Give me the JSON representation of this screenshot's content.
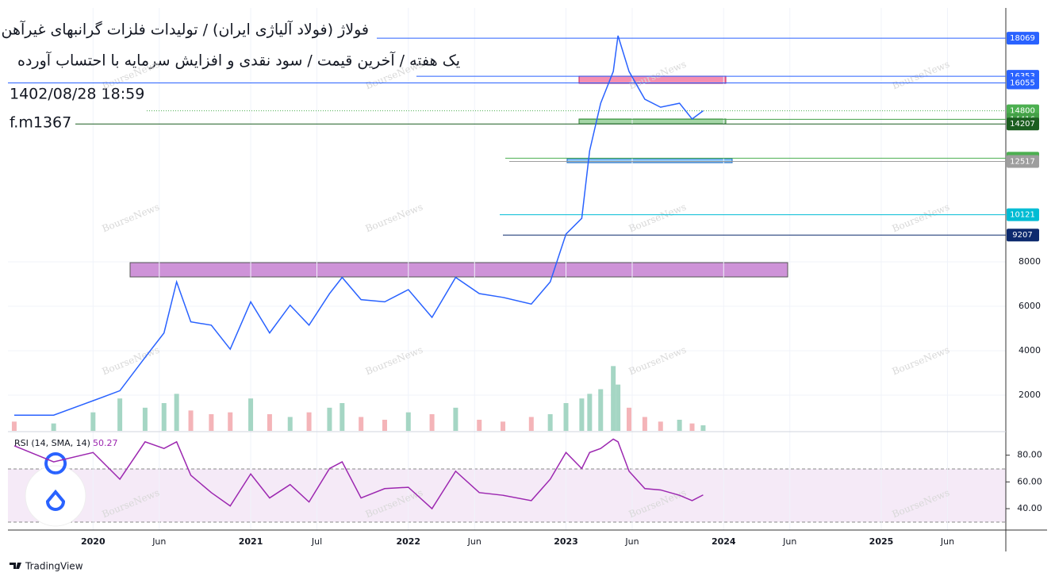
{
  "chart_data": {
    "type": "line",
    "title": "فولاژ (فولاد آلیاژی ایران) / تولیدات فلزات گرانبهای غیرآهن",
    "subtitle": "یک هفته / آخرین قیمت / سود نقدی و افزایش سرمایه با احتساب آورده",
    "annotations": [
      "1402/08/28 18:59",
      "f.m1367",
      "BourseNews",
      "TradingView"
    ],
    "x": [
      2019.5,
      2019.75,
      2020.0,
      2020.17,
      2020.33,
      2020.45,
      2020.53,
      2020.62,
      2020.75,
      2020.87,
      2021.0,
      2021.12,
      2021.25,
      2021.37,
      2021.5,
      2021.58,
      2021.7,
      2021.85,
      2022.0,
      2022.15,
      2022.3,
      2022.45,
      2022.6,
      2022.78,
      2022.9,
      2023.0,
      2023.1,
      2023.15,
      2023.22,
      2023.3,
      2023.33,
      2023.4,
      2023.5,
      2023.6,
      2023.72,
      2023.8,
      2023.87
    ],
    "series": [
      {
        "name": "Price",
        "color": "#2962ff",
        "values": [
          1100,
          1100,
          1750,
          2200,
          3700,
          4800,
          7100,
          5300,
          5150,
          4070,
          6200,
          4800,
          6050,
          5150,
          6570,
          7300,
          6300,
          6200,
          6750,
          5500,
          7300,
          6570,
          6400,
          6100,
          7100,
          9250,
          9960,
          13000,
          15140,
          16570,
          18180,
          16570,
          15320,
          14960,
          15140,
          14430,
          14800
        ]
      },
      {
        "name": "Volume",
        "color": "#f4b4b8",
        "values": [
          10,
          8,
          20,
          35,
          25,
          30,
          40,
          22,
          18,
          20,
          35,
          18,
          15,
          20,
          25,
          30,
          15,
          12,
          20,
          18,
          25,
          12,
          10,
          15,
          18,
          30,
          35,
          40,
          45,
          70,
          50,
          25,
          15,
          10,
          12,
          8,
          6
        ]
      },
      {
        "name": "RSI (14, SMA, 14)",
        "color": "#9c27b0",
        "axis": "y2",
        "values": [
          87,
          75,
          82,
          62,
          90,
          85,
          90,
          65,
          52,
          42,
          66,
          48,
          58,
          45,
          70,
          75,
          48,
          55,
          56,
          40,
          68,
          52,
          50,
          46,
          62,
          82,
          70,
          82,
          85,
          92,
          90,
          68,
          55,
          54,
          50,
          46,
          50.27
        ]
      }
    ],
    "levels": [
      {
        "value": 18069,
        "color": "#2962ff"
      },
      {
        "value": 16353,
        "color": "#2962ff"
      },
      {
        "value": 16055,
        "color": "#2962ff"
      },
      {
        "value": 14800,
        "color": "#4caf50"
      },
      {
        "value": 14416,
        "color": "#43a047"
      },
      {
        "value": 14207,
        "color": "#1b5e20"
      },
      {
        "value": 12665,
        "color": "#4caf50"
      },
      {
        "value": 12517,
        "color": "#9e9e9e"
      },
      {
        "value": 10121,
        "color": "#00bcd4"
      },
      {
        "value": 9207,
        "color": "#0d2a6e"
      }
    ],
    "xlim": [
      2019.46,
      2025.79
    ],
    "xticks": [
      2020,
      {
        "value": 2020.42,
        "label": "Jun"
      },
      2021,
      {
        "value": 2021.42,
        "label": "Jul"
      },
      2022,
      {
        "value": 2022.42,
        "label": "Jun"
      },
      2023,
      {
        "value": 2023.42,
        "label": "Jun"
      },
      2024,
      {
        "value": 2024.42,
        "label": "Jun"
      },
      2025,
      {
        "value": 2025.42,
        "label": "Jun"
      }
    ],
    "ylim": [
      393,
      19429
    ],
    "yticks": [
      2000,
      4000,
      6000,
      8000
    ],
    "vlim": [
      0,
      120
    ],
    "y2lim": [
      24,
      97
    ],
    "y2ticks": [
      {
        "value": 80,
        "label": "80.00"
      },
      {
        "value": 60,
        "label": "60.00"
      },
      {
        "value": 40,
        "label": "40.00"
      }
    ],
    "grid": true
  }
}
